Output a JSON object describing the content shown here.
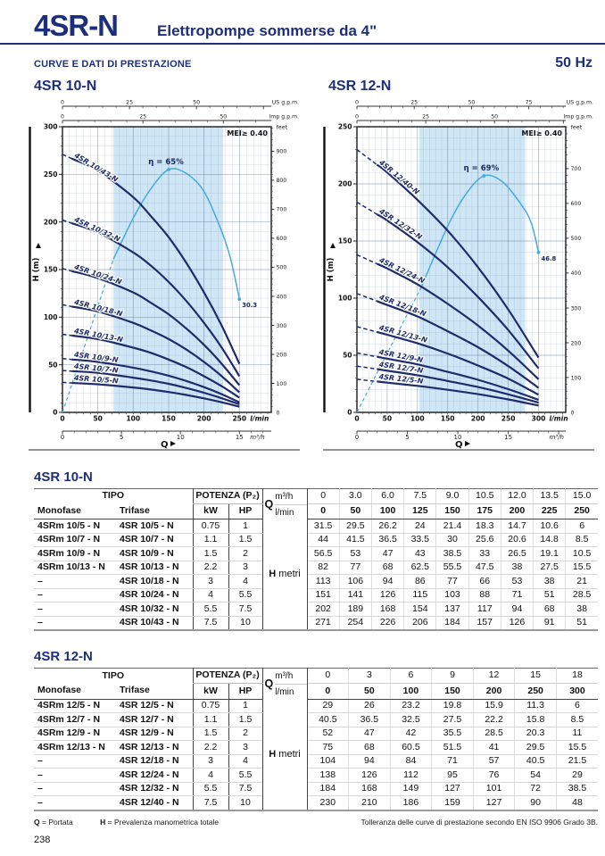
{
  "theme": {
    "navy": "#1c2f7d",
    "curve": "#1f2c6b",
    "sky": "#45abdc",
    "band": "#cfe6f6"
  },
  "header": {
    "model": "4SR-N",
    "subtitle": "Elettropompe sommerse da 4\"",
    "section_label": "CURVE E DATI DI PRESTAZIONE",
    "frequency": "50 Hz"
  },
  "footnotes": {
    "q_key": "Q",
    "q_text": "= Portata",
    "h_key": "H",
    "h_text": "= Prevalenza manometrica totale",
    "right": "Tolleranza delle curve di prestazione secondo EN ISO 9906 Grado 3B."
  },
  "page_number": "238",
  "chart_data": [
    {
      "type": "line",
      "title": "4SR 10-N",
      "mei_label": "MEI≥ 0.40",
      "x_max_lmin": 295,
      "y_max": 300,
      "band_lmin": [
        72,
        227
      ],
      "dash_end": 13,
      "label_q": 16,
      "x_axis": {
        "label": "Q",
        "unit_primary": "l/min",
        "ticks_lmin": [
          0,
          50,
          100,
          150,
          200,
          250
        ],
        "unit_m3h": "m³/h",
        "ticks_m3h": [
          0,
          5,
          10,
          15
        ]
      },
      "top_axis": {
        "us_label": "US g.p.m.",
        "us_ticks": [
          0,
          25,
          50
        ],
        "imp_label": "Imp g.p.m.",
        "imp_ticks": [
          0,
          25,
          50
        ]
      },
      "y_axis": {
        "label": "H (m)",
        "ticks": [
          0,
          50,
          100,
          150,
          200,
          250,
          300
        ],
        "feet_label": "feet",
        "feet_max": 900
      },
      "q_lmin": [
        0,
        50,
        100,
        125,
        150,
        175,
        200,
        225,
        250
      ],
      "series": [
        {
          "name": "4SR 10/43-N",
          "h_m": [
            271,
            254,
            226,
            206,
            184,
            157,
            126,
            91,
            51
          ]
        },
        {
          "name": "4SR 10/32-N",
          "h_m": [
            202,
            189,
            168,
            154,
            137,
            117,
            94,
            68,
            38
          ]
        },
        {
          "name": "4SR 10/24-N",
          "h_m": [
            151,
            141,
            126,
            115,
            103,
            88,
            71,
            51,
            28.5
          ]
        },
        {
          "name": "4SR 10/18-N",
          "h_m": [
            113,
            106,
            94,
            86,
            77,
            66,
            53,
            38,
            21
          ]
        },
        {
          "name": "4SR 10/13-N",
          "h_m": [
            82,
            77,
            68,
            62.5,
            55.5,
            47.5,
            38,
            27.5,
            15.5
          ]
        },
        {
          "name": "4SR 10/9-N",
          "h_m": [
            56.5,
            53,
            47,
            43,
            38.5,
            33,
            26.5,
            19.1,
            10.5
          ]
        },
        {
          "name": "4SR 10/7-N",
          "h_m": [
            44,
            41.5,
            36.5,
            33.5,
            30,
            25.6,
            20.6,
            14.8,
            8.5
          ]
        },
        {
          "name": "4SR 10/5-N",
          "h_m": [
            31.5,
            29.5,
            26.2,
            24,
            21.4,
            18.3,
            14.7,
            10.6,
            6
          ]
        }
      ],
      "efficiency": {
        "label": "η = 65%",
        "end_label": "30.3",
        "dash_until": 72,
        "peak": [
          150,
          255
        ],
        "end": [
          250,
          119
        ],
        "points": [
          [
            0,
            0
          ],
          [
            36,
            80
          ],
          [
            72,
            161
          ],
          [
            100,
            204
          ],
          [
            125,
            235
          ],
          [
            150,
            255
          ],
          [
            175,
            251
          ],
          [
            200,
            232
          ],
          [
            225,
            190
          ],
          [
            238,
            160
          ],
          [
            250,
            119
          ]
        ]
      }
    },
    {
      "type": "line",
      "title": "4SR 12-N",
      "mei_label": "MEI≥ 0.40",
      "x_max_lmin": 345,
      "y_max": 250,
      "band_lmin": [
        103,
        278
      ],
      "dash_end": 33,
      "label_q": 36,
      "x_axis": {
        "label": "Q",
        "unit_primary": "l/min",
        "ticks_lmin": [
          0,
          50,
          100,
          150,
          200,
          250,
          300
        ],
        "unit_m3h": "m³/h",
        "ticks_m3h": [
          0,
          5,
          10,
          15
        ]
      },
      "top_axis": {
        "us_label": "US g.p.m.",
        "us_ticks": [
          0,
          25,
          50,
          75
        ],
        "imp_label": "Imp g.p.m.",
        "imp_ticks": [
          0,
          25,
          50
        ]
      },
      "y_axis": {
        "label": "H (m)",
        "ticks": [
          0,
          50,
          100,
          150,
          200,
          250
        ],
        "feet_label": "feet",
        "feet_max": 700
      },
      "q_lmin": [
        0,
        50,
        100,
        150,
        200,
        250,
        300
      ],
      "series": [
        {
          "name": "4SR 12/40-N",
          "h_m": [
            230,
            210,
            186,
            159,
            127,
            90,
            48
          ]
        },
        {
          "name": "4SR 12/32-N",
          "h_m": [
            184,
            168,
            149,
            127,
            101,
            72,
            38.5
          ]
        },
        {
          "name": "4SR 12/24-N",
          "h_m": [
            138,
            126,
            112,
            95,
            76,
            54,
            29
          ]
        },
        {
          "name": "4SR 12/18-N",
          "h_m": [
            104,
            94,
            84,
            71,
            57,
            40.5,
            21.5
          ]
        },
        {
          "name": "4SR 12/13-N",
          "h_m": [
            75,
            68,
            60.5,
            51.5,
            41,
            29.5,
            15.5
          ]
        },
        {
          "name": "4SR 12/9-N",
          "h_m": [
            52,
            47,
            42,
            35.5,
            28.5,
            20.3,
            11
          ]
        },
        {
          "name": "4SR 12/7-N",
          "h_m": [
            40.5,
            36.5,
            32.5,
            27.5,
            22.2,
            15.8,
            8.5
          ]
        },
        {
          "name": "4SR 12/5-N",
          "h_m": [
            29,
            26,
            23.2,
            19.8,
            15.9,
            11.3,
            6
          ]
        }
      ],
      "efficiency": {
        "label": "η = 69%",
        "end_label": "46.8",
        "dash_until": 105,
        "peak": [
          210,
          207
        ],
        "end": [
          300,
          140
        ],
        "points": [
          [
            0,
            0
          ],
          [
            52,
            54
          ],
          [
            105,
            108
          ],
          [
            150,
            163
          ],
          [
            180,
            191
          ],
          [
            210,
            207
          ],
          [
            240,
            202
          ],
          [
            270,
            183
          ],
          [
            288,
            166
          ],
          [
            300,
            140
          ]
        ]
      }
    }
  ],
  "tables": [
    {
      "title": "4SR 10-N",
      "header": {
        "tipo": "TIPO",
        "monofase": "Monofase",
        "trifase": "Trifase",
        "potenza": "POTENZA (P₂)",
        "kw": "kW",
        "hp": "HP",
        "q": "Q",
        "m3h": "m³/h",
        "lmin": "l/min",
        "h_key": "H",
        "h_unit": "metri"
      },
      "q_m3h": [
        "0",
        "3.0",
        "6.0",
        "7.5",
        "9.0",
        "10.5",
        "12.0",
        "13.5",
        "15.0"
      ],
      "q_lmin": [
        "0",
        "50",
        "100",
        "125",
        "150",
        "175",
        "200",
        "225",
        "250"
      ],
      "rows": [
        {
          "monofase": "4SRm 10/5 - N",
          "trifase": "4SR 10/5 - N",
          "kw": "0.75",
          "hp": "1",
          "h": [
            "31.5",
            "29.5",
            "26.2",
            "24",
            "21.4",
            "18.3",
            "14.7",
            "10.6",
            "6"
          ]
        },
        {
          "monofase": "4SRm 10/7 - N",
          "trifase": "4SR 10/7 - N",
          "kw": "1.1",
          "hp": "1.5",
          "h": [
            "44",
            "41.5",
            "36.5",
            "33.5",
            "30",
            "25.6",
            "20.6",
            "14.8",
            "8.5"
          ]
        },
        {
          "monofase": "4SRm 10/9 - N",
          "trifase": "4SR 10/9 - N",
          "kw": "1.5",
          "hp": "2",
          "h": [
            "56.5",
            "53",
            "47",
            "43",
            "38.5",
            "33",
            "26.5",
            "19.1",
            "10.5"
          ]
        },
        {
          "monofase": "4SRm 10/13 - N",
          "trifase": "4SR 10/13 - N",
          "kw": "2.2",
          "hp": "3",
          "h": [
            "82",
            "77",
            "68",
            "62.5",
            "55.5",
            "47.5",
            "38",
            "27.5",
            "15.5"
          ]
        },
        {
          "monofase": "–",
          "trifase": "4SR 10/18 - N",
          "kw": "3",
          "hp": "4",
          "h": [
            "113",
            "106",
            "94",
            "86",
            "77",
            "66",
            "53",
            "38",
            "21"
          ]
        },
        {
          "monofase": "–",
          "trifase": "4SR 10/24 - N",
          "kw": "4",
          "hp": "5.5",
          "h": [
            "151",
            "141",
            "126",
            "115",
            "103",
            "88",
            "71",
            "51",
            "28.5"
          ]
        },
        {
          "monofase": "–",
          "trifase": "4SR 10/32 - N",
          "kw": "5.5",
          "hp": "7.5",
          "h": [
            "202",
            "189",
            "168",
            "154",
            "137",
            "117",
            "94",
            "68",
            "38"
          ]
        },
        {
          "monofase": "–",
          "trifase": "4SR 10/43 - N",
          "kw": "7.5",
          "hp": "10",
          "h": [
            "271",
            "254",
            "226",
            "206",
            "184",
            "157",
            "126",
            "91",
            "51"
          ]
        }
      ]
    },
    {
      "title": "4SR 12-N",
      "header": {
        "tipo": "TIPO",
        "monofase": "Monofase",
        "trifase": "Trifase",
        "potenza": "POTENZA (P₂)",
        "kw": "kW",
        "hp": "HP",
        "q": "Q",
        "m3h": "m³/h",
        "lmin": "l/min",
        "h_key": "H",
        "h_unit": "metri"
      },
      "q_m3h": [
        "0",
        "3",
        "6",
        "9",
        "12",
        "15",
        "18"
      ],
      "q_lmin": [
        "0",
        "50",
        "100",
        "150",
        "200",
        "250",
        "300"
      ],
      "rows": [
        {
          "monofase": "4SRm 12/5 - N",
          "trifase": "4SR 12/5 - N",
          "kw": "0.75",
          "hp": "1",
          "h": [
            "29",
            "26",
            "23.2",
            "19.8",
            "15.9",
            "11.3",
            "6"
          ]
        },
        {
          "monofase": "4SRm 12/7 - N",
          "trifase": "4SR 12/7 - N",
          "kw": "1.1",
          "hp": "1.5",
          "h": [
            "40.5",
            "36.5",
            "32.5",
            "27.5",
            "22.2",
            "15.8",
            "8.5"
          ]
        },
        {
          "monofase": "4SRm 12/9 - N",
          "trifase": "4SR 12/9 - N",
          "kw": "1.5",
          "hp": "2",
          "h": [
            "52",
            "47",
            "42",
            "35.5",
            "28.5",
            "20.3",
            "11"
          ]
        },
        {
          "monofase": "4SRm 12/13 - N",
          "trifase": "4SR 12/13 - N",
          "kw": "2.2",
          "hp": "3",
          "h": [
            "75",
            "68",
            "60.5",
            "51.5",
            "41",
            "29.5",
            "15.5"
          ]
        },
        {
          "monofase": "–",
          "trifase": "4SR 12/18 - N",
          "kw": "3",
          "hp": "4",
          "h": [
            "104",
            "94",
            "84",
            "71",
            "57",
            "40.5",
            "21.5"
          ]
        },
        {
          "monofase": "–",
          "trifase": "4SR 12/24 - N",
          "kw": "4",
          "hp": "5.5",
          "h": [
            "138",
            "126",
            "112",
            "95",
            "76",
            "54",
            "29"
          ]
        },
        {
          "monofase": "–",
          "trifase": "4SR 12/32 - N",
          "kw": "5.5",
          "hp": "7.5",
          "h": [
            "184",
            "168",
            "149",
            "127",
            "101",
            "72",
            "38.5"
          ]
        },
        {
          "monofase": "–",
          "trifase": "4SR 12/40 - N",
          "kw": "7.5",
          "hp": "10",
          "h": [
            "230",
            "210",
            "186",
            "159",
            "127",
            "90",
            "48"
          ]
        }
      ]
    }
  ]
}
